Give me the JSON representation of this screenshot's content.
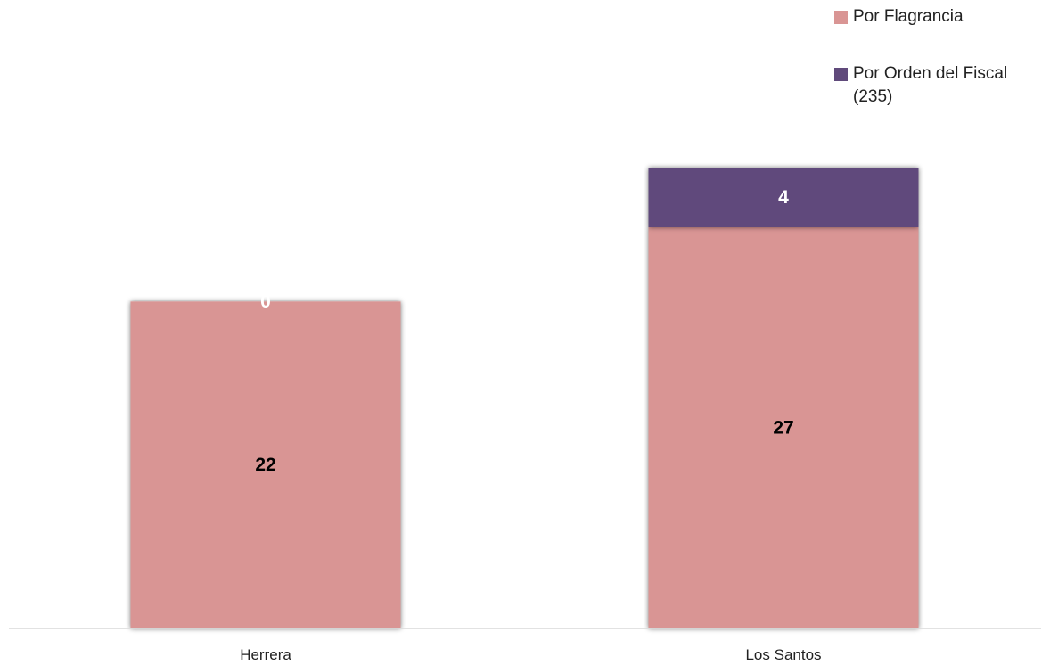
{
  "chart_data": {
    "type": "bar",
    "stacked": true,
    "categories": [
      "Herrera",
      "Los Santos"
    ],
    "series": [
      {
        "name": "Por Flagrancia",
        "values": [
          22,
          27
        ],
        "color": "#d99594",
        "label_color": "#000000"
      },
      {
        "name": "Por Orden del Fiscal\n(235)",
        "values": [
          0,
          4
        ],
        "color": "#604a7b",
        "label_color": "#ffffff"
      }
    ],
    "title": "",
    "xlabel": "",
    "ylabel": "",
    "ylim": [
      0,
      31.5
    ],
    "grid": false,
    "legend_position": "top-right"
  }
}
